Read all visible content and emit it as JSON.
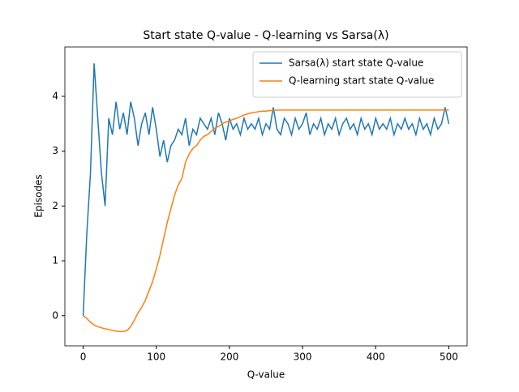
{
  "chart_data": {
    "type": "line",
    "title": "Start state Q-value - Q-learning vs Sarsa(λ)",
    "xlabel": "Q-value",
    "ylabel": "Episodes",
    "x": [
      0,
      5,
      10,
      15,
      20,
      25,
      30,
      35,
      40,
      45,
      50,
      55,
      60,
      65,
      70,
      75,
      80,
      85,
      90,
      95,
      100,
      105,
      110,
      115,
      120,
      125,
      130,
      135,
      140,
      145,
      150,
      155,
      160,
      165,
      170,
      175,
      180,
      185,
      190,
      195,
      200,
      205,
      210,
      215,
      220,
      225,
      230,
      235,
      240,
      245,
      250,
      255,
      260,
      265,
      270,
      275,
      280,
      285,
      290,
      295,
      300,
      305,
      310,
      315,
      320,
      325,
      330,
      335,
      340,
      345,
      350,
      355,
      360,
      365,
      370,
      375,
      380,
      385,
      390,
      395,
      400,
      405,
      410,
      415,
      420,
      425,
      430,
      435,
      440,
      445,
      450,
      455,
      460,
      465,
      470,
      475,
      480,
      485,
      490,
      495,
      500
    ],
    "series": [
      {
        "name": "Sarsa(λ) start state Q-value",
        "color": "#1f77b4",
        "values": [
          0.0,
          1.5,
          2.6,
          4.6,
          3.6,
          2.6,
          2.0,
          3.6,
          3.3,
          3.9,
          3.4,
          3.7,
          3.3,
          3.9,
          3.6,
          3.1,
          3.5,
          3.7,
          3.3,
          3.8,
          3.4,
          2.9,
          3.2,
          2.8,
          3.1,
          3.2,
          3.4,
          3.3,
          3.6,
          3.1,
          3.4,
          3.3,
          3.6,
          3.5,
          3.4,
          3.6,
          3.3,
          3.7,
          3.5,
          3.2,
          3.6,
          3.4,
          3.5,
          3.3,
          3.6,
          3.4,
          3.5,
          3.4,
          3.6,
          3.3,
          3.5,
          3.4,
          3.8,
          3.4,
          3.3,
          3.6,
          3.5,
          3.3,
          3.6,
          3.4,
          3.5,
          3.7,
          3.3,
          3.5,
          3.4,
          3.6,
          3.3,
          3.5,
          3.4,
          3.6,
          3.3,
          3.5,
          3.6,
          3.4,
          3.5,
          3.3,
          3.6,
          3.4,
          3.5,
          3.3,
          3.6,
          3.4,
          3.5,
          3.4,
          3.6,
          3.3,
          3.5,
          3.4,
          3.6,
          3.4,
          3.5,
          3.3,
          3.6,
          3.4,
          3.5,
          3.3,
          3.6,
          3.4,
          3.5,
          3.8,
          3.5
        ]
      },
      {
        "name": "Q-learning start state Q-value",
        "color": "#ff7f0e",
        "values": [
          0.0,
          -0.05,
          -0.12,
          -0.17,
          -0.2,
          -0.22,
          -0.24,
          -0.25,
          -0.27,
          -0.28,
          -0.29,
          -0.29,
          -0.27,
          -0.2,
          -0.08,
          0.05,
          0.15,
          0.28,
          0.45,
          0.62,
          0.85,
          1.1,
          1.4,
          1.7,
          1.95,
          2.2,
          2.38,
          2.5,
          2.8,
          2.95,
          3.05,
          3.1,
          3.2,
          3.27,
          3.3,
          3.36,
          3.42,
          3.45,
          3.5,
          3.53,
          3.55,
          3.58,
          3.6,
          3.63,
          3.66,
          3.68,
          3.7,
          3.71,
          3.72,
          3.73,
          3.73,
          3.74,
          3.74,
          3.75,
          3.75,
          3.75,
          3.75,
          3.75,
          3.75,
          3.75,
          3.75,
          3.75,
          3.75,
          3.75,
          3.75,
          3.75,
          3.75,
          3.75,
          3.75,
          3.75,
          3.75,
          3.75,
          3.75,
          3.75,
          3.75,
          3.75,
          3.75,
          3.75,
          3.75,
          3.75,
          3.75,
          3.75,
          3.75,
          3.75,
          3.75,
          3.75,
          3.75,
          3.75,
          3.75,
          3.75,
          3.75,
          3.75,
          3.75,
          3.75,
          3.75,
          3.75,
          3.75,
          3.75,
          3.75,
          3.75,
          3.75
        ]
      }
    ],
    "xlim": [
      -25,
      525
    ],
    "ylim": [
      -0.55,
      4.9
    ],
    "xticks": [
      0,
      100,
      200,
      300,
      400,
      500
    ],
    "yticks": [
      0,
      1,
      2,
      3,
      4
    ],
    "legend": "upper right"
  }
}
